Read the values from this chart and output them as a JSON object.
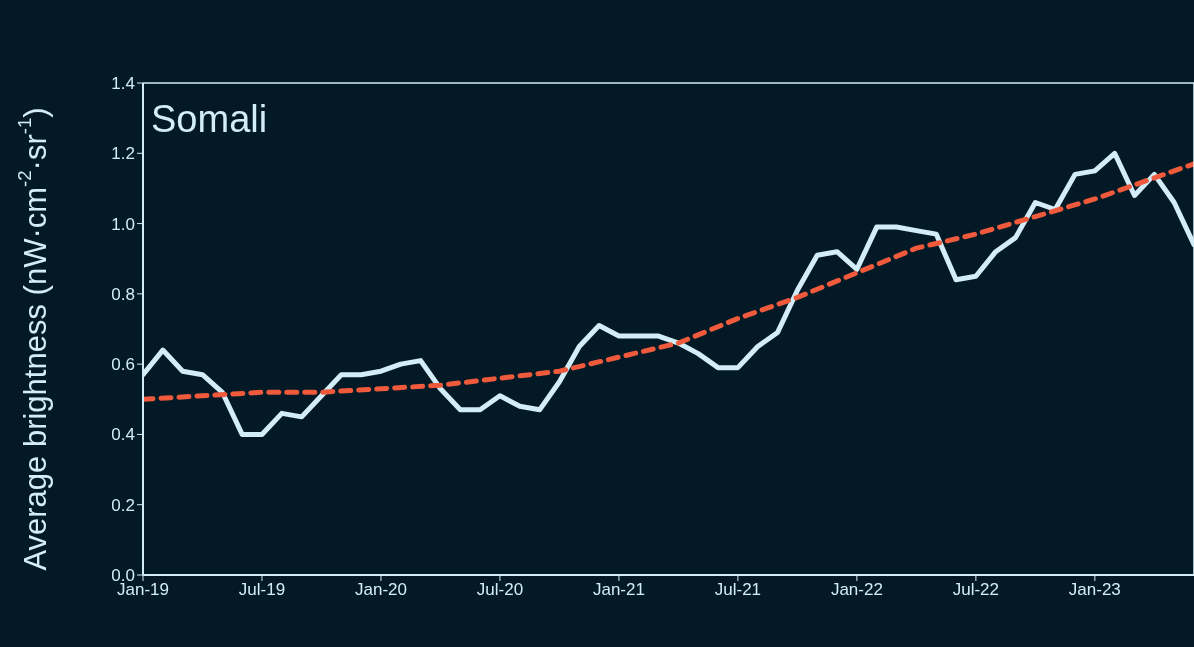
{
  "chart_data": {
    "type": "line",
    "title": "Somali",
    "ylabel": "Average brightness (nW·cm$^{-2}$·sr$^{-1}$)",
    "xlim": [
      "2019-01",
      "2023-06"
    ],
    "xticks": [
      {
        "value": "2019-01",
        "label": "Jan-19"
      },
      {
        "value": "2019-07",
        "label": "Jul-19"
      },
      {
        "value": "2020-01",
        "label": "Jan-20"
      },
      {
        "value": "2020-07",
        "label": "Jul-20"
      },
      {
        "value": "2021-01",
        "label": "Jan-21"
      },
      {
        "value": "2021-07",
        "label": "Jul-21"
      },
      {
        "value": "2022-01",
        "label": "Jan-22"
      },
      {
        "value": "2022-07",
        "label": "Jul-22"
      },
      {
        "value": "2023-01",
        "label": "Jan-23"
      }
    ],
    "ylim": [
      0,
      1.4
    ],
    "yticks": [
      {
        "value": 0,
        "label": "0.0"
      },
      0.2,
      0.4,
      0.6,
      0.8,
      {
        "value": 1,
        "label": "1.0"
      },
      1.2,
      1.4
    ],
    "series": [
      {
        "color": "#d3edf8",
        "line_style": "solid",
        "x": [
          "2019-01",
          "2019-02",
          "2019-03",
          "2019-04",
          "2019-05",
          "2019-06",
          "2019-07",
          "2019-08",
          "2019-09",
          "2019-10",
          "2019-11",
          "2019-12",
          "2020-01",
          "2020-02",
          "2020-03",
          "2020-04",
          "2020-05",
          "2020-06",
          "2020-07",
          "2020-08",
          "2020-09",
          "2020-10",
          "2020-11",
          "2020-12",
          "2021-01",
          "2021-02",
          "2021-03",
          "2021-04",
          "2021-05",
          "2021-06",
          "2021-07",
          "2021-08",
          "2021-09",
          "2021-10",
          "2021-11",
          "2021-12",
          "2022-01",
          "2022-02",
          "2022-03",
          "2022-04",
          "2022-05",
          "2022-06",
          "2022-07",
          "2022-08",
          "2022-09",
          "2022-10",
          "2022-11",
          "2022-12",
          "2023-01",
          "2023-02",
          "2023-03",
          "2023-04",
          "2023-05",
          "2023-06"
        ],
        "values": [
          0.57,
          0.64,
          0.58,
          0.57,
          0.52,
          0.4,
          0.4,
          0.46,
          0.45,
          0.51,
          0.57,
          0.57,
          0.58,
          0.6,
          0.61,
          0.53,
          0.47,
          0.47,
          0.51,
          0.48,
          0.47,
          0.55,
          0.65,
          0.71,
          0.68,
          0.68,
          0.68,
          0.66,
          0.63,
          0.59,
          0.59,
          0.65,
          0.69,
          0.81,
          0.91,
          0.92,
          0.87,
          0.99,
          0.99,
          0.98,
          0.97,
          0.84,
          0.85,
          0.92,
          0.96,
          1.06,
          1.04,
          1.14,
          1.15,
          1.2,
          1.08,
          1.14,
          1.06,
          0.94
        ]
      },
      {
        "type": "line",
        "color": "#f05a3c",
        "line_style": "dashed",
        "x": [
          "2019-01",
          "2019-04",
          "2019-07",
          "2019-10",
          "2020-01",
          "2020-04",
          "2020-07",
          "2020-10",
          "2021-01",
          "2021-04",
          "2021-07",
          "2021-10",
          "2022-01",
          "2022-04",
          "2022-07",
          "2022-10",
          "2023-01",
          "2023-06"
        ],
        "values": [
          0.5,
          0.51,
          0.52,
          0.52,
          0.53,
          0.54,
          0.56,
          0.58,
          0.62,
          0.66,
          0.73,
          0.79,
          0.86,
          0.93,
          0.97,
          1.02,
          1.07,
          1.17
        ]
      }
    ]
  }
}
